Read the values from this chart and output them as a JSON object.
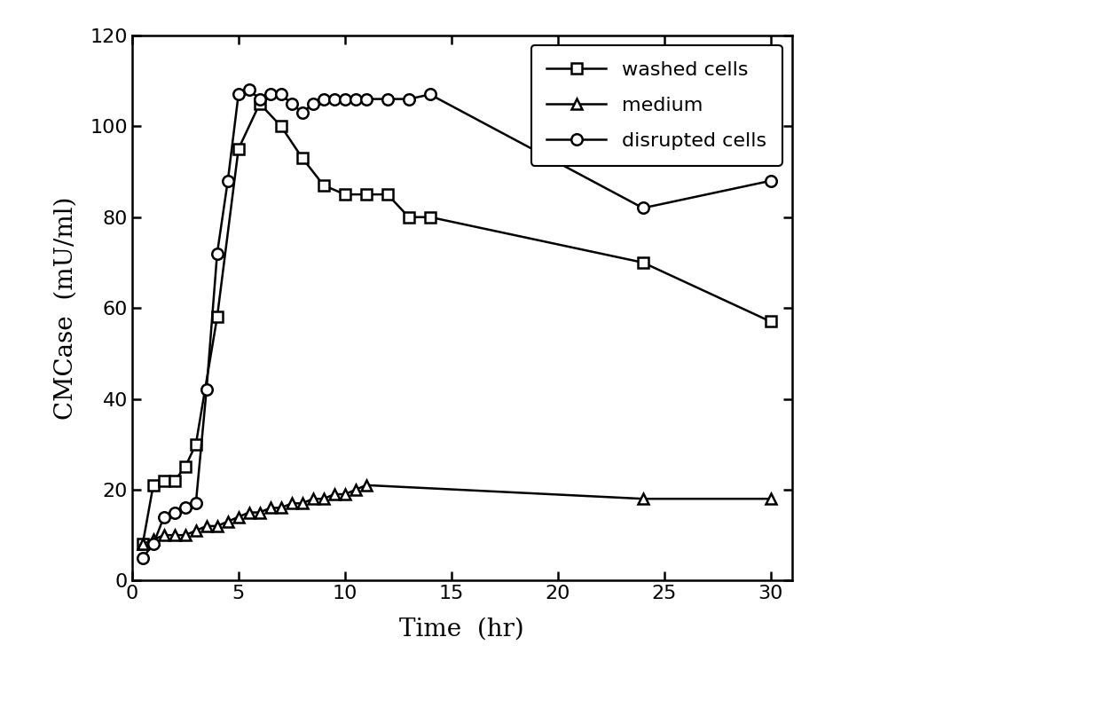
{
  "washed_cells_x": [
    0.5,
    1,
    1.5,
    2,
    2.5,
    3,
    4,
    5,
    6,
    7,
    8,
    9,
    10,
    11,
    12,
    13,
    14,
    24,
    30
  ],
  "washed_cells_y": [
    8,
    21,
    22,
    22,
    25,
    30,
    58,
    95,
    105,
    100,
    93,
    87,
    85,
    85,
    85,
    80,
    80,
    70,
    57
  ],
  "medium_x": [
    0.5,
    1,
    1.5,
    2,
    2.5,
    3,
    3.5,
    4,
    4.5,
    5,
    5.5,
    6,
    6.5,
    7,
    7.5,
    8,
    8.5,
    9,
    9.5,
    10,
    10.5,
    11,
    24,
    30
  ],
  "medium_y": [
    8,
    9,
    10,
    10,
    10,
    11,
    12,
    12,
    13,
    14,
    15,
    15,
    16,
    16,
    17,
    17,
    18,
    18,
    19,
    19,
    20,
    21,
    18,
    18
  ],
  "disrupted_x": [
    0.5,
    1,
    1.5,
    2,
    2.5,
    3,
    3.5,
    4,
    4.5,
    5,
    5.5,
    6,
    6.5,
    7,
    7.5,
    8,
    8.5,
    9,
    9.5,
    10,
    10.5,
    11,
    12,
    13,
    14,
    24,
    30
  ],
  "disrupted_y": [
    5,
    8,
    14,
    15,
    16,
    17,
    42,
    72,
    88,
    107,
    108,
    106,
    107,
    107,
    105,
    103,
    105,
    106,
    106,
    106,
    106,
    106,
    106,
    106,
    107,
    82,
    88
  ],
  "xlabel": "Time  (hr)",
  "ylabel": "CMCase  (mU/ml)",
  "xlim": [
    0,
    31
  ],
  "ylim": [
    0,
    120
  ],
  "xticks": [
    0,
    5,
    10,
    15,
    20,
    25,
    30
  ],
  "yticks": [
    0,
    20,
    40,
    60,
    80,
    100,
    120
  ],
  "legend_labels": [
    "washed cells",
    "medium",
    "disrupted cells"
  ],
  "line_color": "#000000",
  "marker_washed": "s",
  "marker_medium": "^",
  "marker_disrupted": "o",
  "figsize": [
    12.4,
    7.98
  ],
  "dpi": 100
}
